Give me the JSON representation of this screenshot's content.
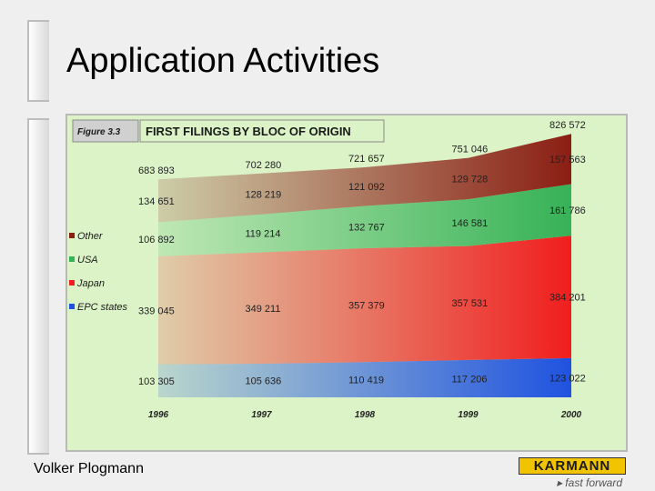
{
  "slide": {
    "title": "Application Activities",
    "author": "Volker Plogmann",
    "logo_text": "KARMANN",
    "logo_tagline": "▸ fast forward"
  },
  "colors": {
    "epc": "#1f52e0",
    "japan": "#f01e1e",
    "usa": "#36b257",
    "other": "#8b1e14",
    "panel": "#dcf3c8"
  },
  "chart_data": {
    "type": "area",
    "stacked": true,
    "figure_label": "Figure 3.3",
    "title": "FIRST FILINGS BY BLOC OF ORIGIN",
    "categories": [
      "1996",
      "1997",
      "1998",
      "1999",
      "2000"
    ],
    "series": [
      {
        "name": "EPC states",
        "values": [
          103305,
          105636,
          110419,
          117206,
          123022
        ],
        "labels": [
          "103 305",
          "105 636",
          "110 419",
          "117 206",
          "123 022"
        ]
      },
      {
        "name": "Japan",
        "values": [
          339045,
          349211,
          357379,
          357531,
          384201
        ],
        "labels": [
          "339 045",
          "349 211",
          "357 379",
          "357 531",
          "384 201"
        ]
      },
      {
        "name": "USA",
        "values": [
          106892,
          119214,
          132767,
          146581,
          161786
        ],
        "labels": [
          "106 892",
          "119 214",
          "132 767",
          "146 581",
          "161 786"
        ]
      },
      {
        "name": "Other",
        "values": [
          134651,
          128219,
          121092,
          129728,
          157563
        ],
        "labels": [
          "134 651",
          "128 219",
          "121 092",
          "129 728",
          "157 563"
        ]
      }
    ],
    "totals": [
      683893,
      702280,
      721657,
      751046,
      826572
    ],
    "total_labels": [
      "683 893",
      "702 280",
      "721 657",
      "751 046",
      "826 572"
    ],
    "legend": [
      "Other",
      "USA",
      "Japan",
      "EPC states"
    ],
    "legend_position": "left",
    "ylim": [
      0,
      850000
    ],
    "grid": false
  }
}
